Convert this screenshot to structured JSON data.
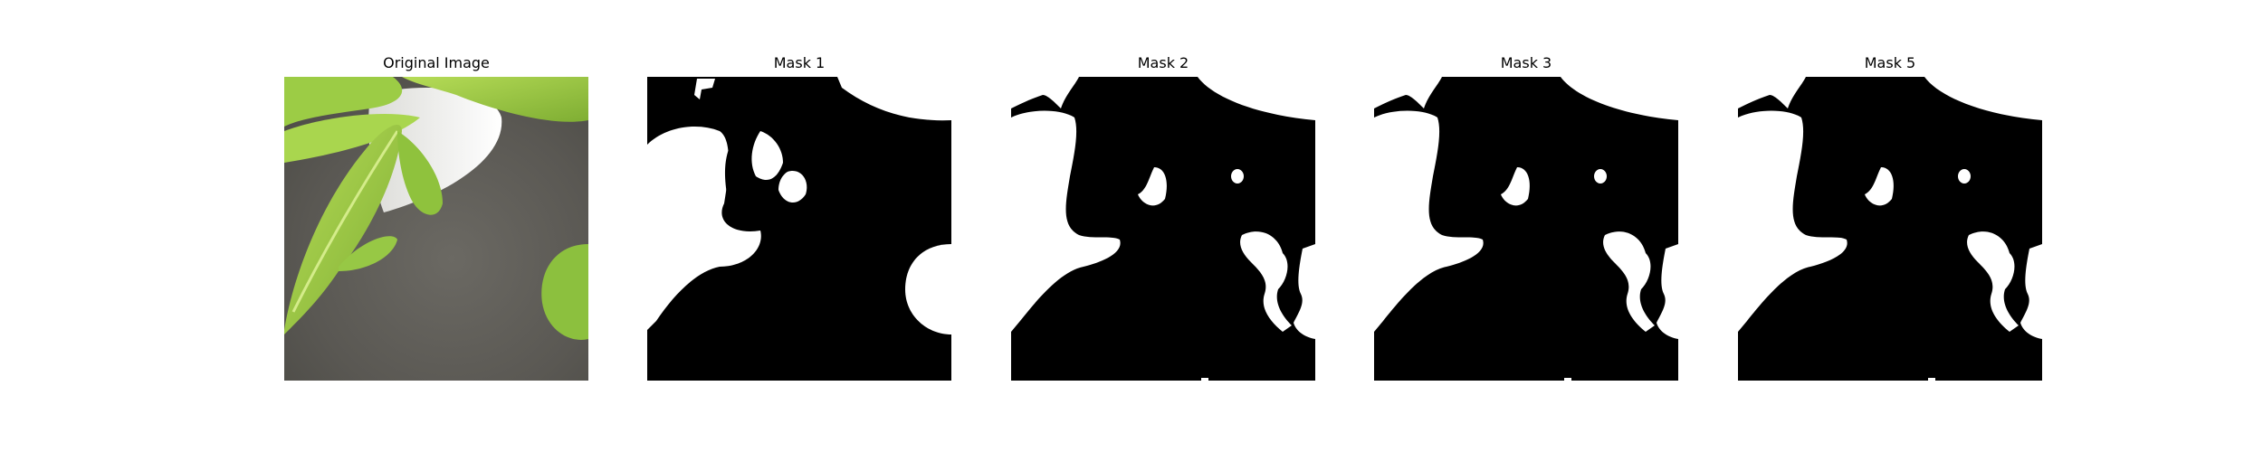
{
  "figure": {
    "panels": [
      {
        "title": "Original Image",
        "kind": "photo"
      },
      {
        "title": "Mask 1",
        "kind": "mask"
      },
      {
        "title": "Mask 2",
        "kind": "mask"
      },
      {
        "title": "Mask 3",
        "kind": "mask"
      },
      {
        "title": "Mask 5",
        "kind": "mask"
      }
    ]
  },
  "colors": {
    "mask_foreground": "#ffffff",
    "mask_background": "#000000",
    "leaf_light": "#a8d24a",
    "leaf_mid": "#86b83a",
    "pot_white": "#f2f2f0",
    "background_gray": "#5e5c56"
  }
}
